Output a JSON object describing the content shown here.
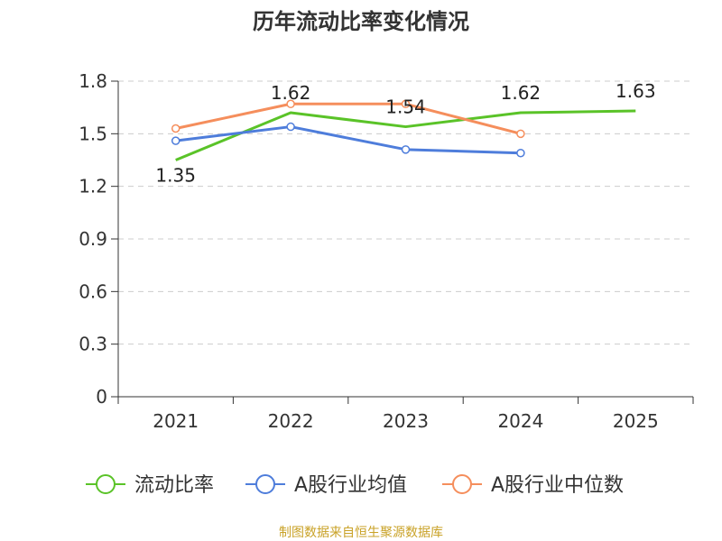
{
  "chart_data": {
    "type": "line",
    "title": "历年流动比率变化情况",
    "categories": [
      "2021",
      "2022",
      "2023",
      "2024",
      "2025"
    ],
    "ylim": [
      0,
      1.8
    ],
    "yticks": [
      "0",
      "0.3",
      "0.6",
      "0.9",
      "1.2",
      "1.5",
      "1.8"
    ],
    "grid": true,
    "legend_position": "bottom",
    "series": [
      {
        "name": "流动比率",
        "color": "#5ac328",
        "values": [
          1.35,
          1.62,
          1.54,
          1.62,
          1.63
        ],
        "labels": [
          "1.35",
          "1.62",
          "1.54",
          "1.62",
          "1.63"
        ]
      },
      {
        "name": "A股行业均值",
        "color": "#4e7ddb",
        "values": [
          1.46,
          1.54,
          1.41,
          1.39,
          null
        ]
      },
      {
        "name": "A股行业中位数",
        "color": "#f58e5c",
        "values": [
          1.53,
          1.67,
          1.67,
          1.5,
          null
        ]
      }
    ]
  },
  "source": "制图数据来自恒生聚源数据库"
}
